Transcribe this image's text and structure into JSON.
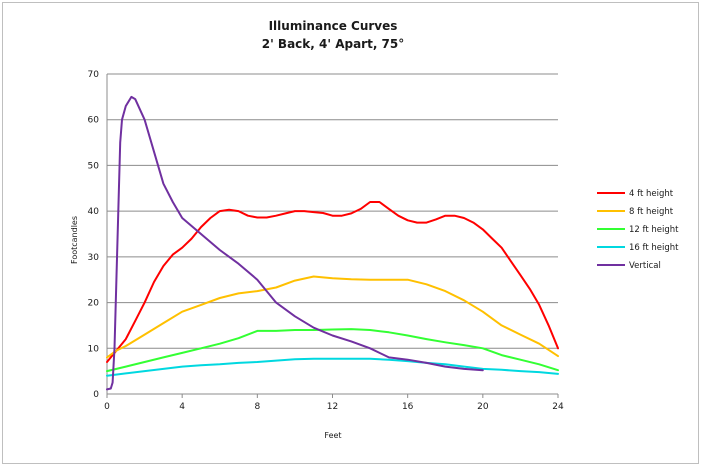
{
  "chart_data": {
    "type": "line",
    "title": "Illuminance Curves",
    "subtitle": "2' Back, 4' Apart, 75°",
    "xlabel": "Feet",
    "ylabel": "Footcandles",
    "xlim": [
      0,
      24
    ],
    "ylim": [
      0,
      70
    ],
    "x_ticks": [
      0,
      4,
      8,
      12,
      16,
      20,
      24
    ],
    "y_ticks": [
      0,
      10,
      20,
      30,
      40,
      50,
      60,
      70
    ],
    "grid": "horizontal",
    "legend_position": "right",
    "series": [
      {
        "name": "4 ft height",
        "color": "#ff0000",
        "points": [
          [
            0,
            7
          ],
          [
            0.3,
            8.5
          ],
          [
            0.5,
            9.5
          ],
          [
            1,
            12
          ],
          [
            1.5,
            16
          ],
          [
            2,
            20
          ],
          [
            2.5,
            24.5
          ],
          [
            3,
            28
          ],
          [
            3.5,
            30.5
          ],
          [
            4,
            32
          ],
          [
            4.5,
            34
          ],
          [
            5,
            36.5
          ],
          [
            5.5,
            38.5
          ],
          [
            6,
            40
          ],
          [
            6.5,
            40.3
          ],
          [
            7,
            40
          ],
          [
            7.5,
            39
          ],
          [
            8,
            38.6
          ],
          [
            8.5,
            38.6
          ],
          [
            9,
            39
          ],
          [
            9.5,
            39.5
          ],
          [
            10,
            40
          ],
          [
            10.5,
            40
          ],
          [
            11,
            39.8
          ],
          [
            11.5,
            39.6
          ],
          [
            12,
            39
          ],
          [
            12.5,
            39
          ],
          [
            13,
            39.5
          ],
          [
            13.5,
            40.5
          ],
          [
            14,
            42
          ],
          [
            14.5,
            42
          ],
          [
            15,
            40.5
          ],
          [
            15.5,
            39
          ],
          [
            16,
            38
          ],
          [
            16.5,
            37.5
          ],
          [
            17,
            37.5
          ],
          [
            17.5,
            38.2
          ],
          [
            18,
            39
          ],
          [
            18.5,
            39
          ],
          [
            19,
            38.5
          ],
          [
            19.5,
            37.5
          ],
          [
            20,
            36
          ],
          [
            20.5,
            34
          ],
          [
            21,
            32
          ],
          [
            21.5,
            29
          ],
          [
            22,
            26
          ],
          [
            22.5,
            23
          ],
          [
            23,
            19.5
          ],
          [
            23.5,
            15
          ],
          [
            24,
            10
          ]
        ]
      },
      {
        "name": "8 ft height",
        "color": "#ffc000",
        "points": [
          [
            0,
            8
          ],
          [
            0.5,
            9.5
          ],
          [
            1,
            10.5
          ],
          [
            2,
            13
          ],
          [
            3,
            15.5
          ],
          [
            4,
            18
          ],
          [
            5,
            19.5
          ],
          [
            6,
            21
          ],
          [
            7,
            22
          ],
          [
            8,
            22.5
          ],
          [
            9,
            23.3
          ],
          [
            10,
            24.8
          ],
          [
            11,
            25.7
          ],
          [
            12,
            25.3
          ],
          [
            13,
            25.1
          ],
          [
            14,
            25
          ],
          [
            15,
            25
          ],
          [
            16,
            25
          ],
          [
            17,
            24
          ],
          [
            18,
            22.5
          ],
          [
            19,
            20.5
          ],
          [
            20,
            18
          ],
          [
            21,
            15
          ],
          [
            22,
            13
          ],
          [
            23,
            11
          ],
          [
            24,
            8.3
          ]
        ]
      },
      {
        "name": "12 ft height",
        "color": "#33ff33",
        "points": [
          [
            0,
            5
          ],
          [
            1,
            6
          ],
          [
            2,
            7
          ],
          [
            3,
            8
          ],
          [
            4,
            9
          ],
          [
            5,
            10
          ],
          [
            6,
            11
          ],
          [
            7,
            12.2
          ],
          [
            8,
            13.8
          ],
          [
            9,
            13.8
          ],
          [
            10,
            14
          ],
          [
            11,
            14
          ],
          [
            12,
            14.1
          ],
          [
            13,
            14.2
          ],
          [
            14,
            14
          ],
          [
            15,
            13.5
          ],
          [
            16,
            12.8
          ],
          [
            17,
            12
          ],
          [
            18,
            11.3
          ],
          [
            19,
            10.7
          ],
          [
            20,
            10
          ],
          [
            21,
            8.5
          ],
          [
            22,
            7.5
          ],
          [
            23,
            6.5
          ],
          [
            24,
            5.2
          ]
        ]
      },
      {
        "name": "16 ft height",
        "color": "#00d8e0",
        "points": [
          [
            0,
            4
          ],
          [
            1,
            4.5
          ],
          [
            2,
            5
          ],
          [
            3,
            5.5
          ],
          [
            4,
            6
          ],
          [
            5,
            6.3
          ],
          [
            6,
            6.5
          ],
          [
            7,
            6.8
          ],
          [
            8,
            7
          ],
          [
            9,
            7.3
          ],
          [
            10,
            7.6
          ],
          [
            11,
            7.7
          ],
          [
            12,
            7.7
          ],
          [
            13,
            7.7
          ],
          [
            14,
            7.7
          ],
          [
            15,
            7.5
          ],
          [
            16,
            7.2
          ],
          [
            17,
            6.8
          ],
          [
            18,
            6.5
          ],
          [
            19,
            6
          ],
          [
            20,
            5.5
          ],
          [
            21,
            5.3
          ],
          [
            22,
            5
          ],
          [
            23,
            4.8
          ],
          [
            24,
            4.4
          ]
        ]
      },
      {
        "name": "Vertical",
        "color": "#7030a0",
        "points": [
          [
            0,
            1
          ],
          [
            0.2,
            1.2
          ],
          [
            0.3,
            2.5
          ],
          [
            0.4,
            10
          ],
          [
            0.5,
            25
          ],
          [
            0.6,
            40
          ],
          [
            0.7,
            55
          ],
          [
            0.8,
            60
          ],
          [
            1,
            63
          ],
          [
            1.3,
            65
          ],
          [
            1.5,
            64.5
          ],
          [
            2,
            60
          ],
          [
            2.5,
            53
          ],
          [
            3,
            46
          ],
          [
            3.5,
            42
          ],
          [
            4,
            38.5
          ],
          [
            5,
            35
          ],
          [
            6,
            31.5
          ],
          [
            7,
            28.5
          ],
          [
            8,
            25
          ],
          [
            9,
            20
          ],
          [
            10,
            17
          ],
          [
            11,
            14.5
          ],
          [
            12,
            12.8
          ],
          [
            13,
            11.5
          ],
          [
            14,
            10
          ],
          [
            15,
            8
          ],
          [
            16,
            7.5
          ],
          [
            17,
            6.8
          ],
          [
            18,
            6
          ],
          [
            19,
            5.5
          ],
          [
            20,
            5.2
          ]
        ]
      }
    ]
  }
}
